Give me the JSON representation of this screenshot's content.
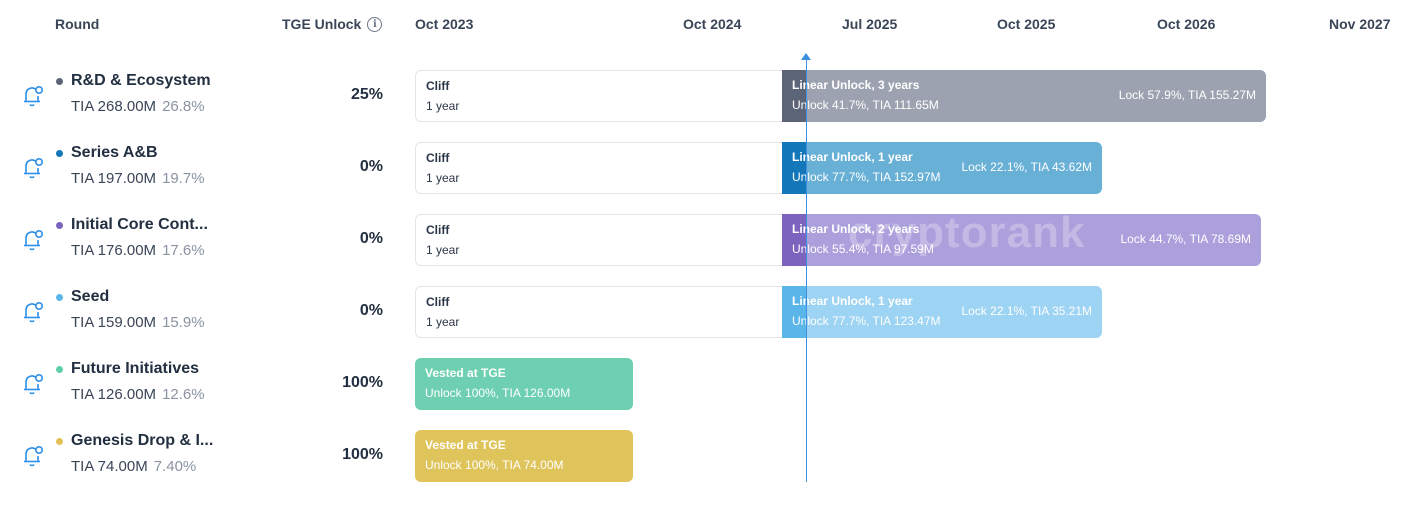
{
  "header": {
    "round_label": "Round",
    "tge_label": "TGE Unlock",
    "info_glyph": "i"
  },
  "timeline_dates": [
    "Oct 2023",
    "Oct 2024",
    "Jul 2025",
    "Oct 2025",
    "Oct 2026",
    "Nov 2027"
  ],
  "watermark": "cryptorank",
  "rounds": [
    {
      "name": "R&D & Ecosystem",
      "amount": "TIA 268.00M",
      "pct": "26.8%",
      "tge": "25%",
      "color": "#5c6478",
      "cliff_title": "Cliff",
      "cliff_sub": "1 year",
      "linear_title": "Linear Unlock, 3 years",
      "linear_sub": "Unlock 41.7%, TIA 111.65M",
      "lock": "Lock 57.9%, TIA 155.27M",
      "bar_color": "#9da2b0"
    },
    {
      "name": "Series A&B",
      "amount": "TIA 197.00M",
      "pct": "19.7%",
      "tge": "0%",
      "color": "#1477b9",
      "cliff_title": "Cliff",
      "cliff_sub": "1 year",
      "linear_title": "Linear Unlock, 1 year",
      "linear_sub": "Unlock 77.7%, TIA 152.97M",
      "lock": "Lock 22.1%, TIA 43.62M",
      "bar_color": "#68b0d6"
    },
    {
      "name": "Initial Core Cont...",
      "amount": "TIA 176.00M",
      "pct": "17.6%",
      "tge": "0%",
      "color": "#7c64be",
      "cliff_title": "Cliff",
      "cliff_sub": "1 year",
      "linear_title": "Linear Unlock, 2 years",
      "linear_sub": "Unlock 55.4%, TIA 97.59M",
      "lock": "Lock 44.7%, TIA 78.69M",
      "bar_color": "#ab9fdc"
    },
    {
      "name": "Seed",
      "amount": "TIA 159.00M",
      "pct": "15.9%",
      "tge": "0%",
      "color": "#5ab5e8",
      "cliff_title": "Cliff",
      "cliff_sub": "1 year",
      "linear_title": "Linear Unlock, 1 year",
      "linear_sub": "Unlock 77.7%, TIA 123.47M",
      "lock": "Lock 22.1%, TIA 35.21M",
      "bar_color": "#9dd3f3"
    },
    {
      "name": "Future Initiatives",
      "amount": "TIA 126.00M",
      "pct": "12.6%",
      "tge": "100%",
      "color": "#5ccfa8",
      "vested_title": "Vested at TGE",
      "vested_sub": "Unlock 100%, TIA 126.00M",
      "bar_color": "#6ed0b1"
    },
    {
      "name": "Genesis Drop & I...",
      "amount": "TIA 74.00M",
      "pct": "7.40%",
      "tge": "100%",
      "color": "#e2c154",
      "vested_title": "Vested at TGE",
      "vested_sub": "Unlock 100%, TIA 74.00M",
      "bar_color": "#dfc45c"
    }
  ],
  "chart_data": {
    "type": "table",
    "columns": [
      "Round",
      "TGE Unlock"
    ],
    "rows": [
      [
        "R&D & Ecosystem",
        "25%"
      ],
      [
        "Series A&B",
        "0%"
      ],
      [
        "Initial Core Cont...",
        "0%"
      ],
      [
        "Seed",
        "0%"
      ],
      [
        "Future Initiatives",
        "100%"
      ],
      [
        "Genesis Drop & I...",
        "100%"
      ]
    ]
  }
}
